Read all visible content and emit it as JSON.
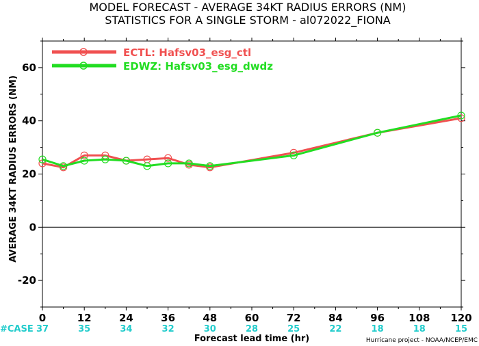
{
  "chart_data": {
    "type": "line",
    "title": "MODEL FORECAST - AVERAGE 34KT RADIUS ERRORS (NM)",
    "subtitle": "STATISTICS FOR A SINGLE STORM - al072022_FIONA",
    "xlabel": "Forecast lead time (hr)",
    "ylabel": "AVERAGE 34KT RADIUS ERRORS (NM)",
    "xlim": [
      0,
      120
    ],
    "ylim": [
      -30,
      70
    ],
    "x_ticks": [
      0,
      12,
      24,
      36,
      48,
      60,
      72,
      84,
      96,
      108,
      120
    ],
    "y_ticks": [
      -20,
      0,
      20,
      40,
      60
    ],
    "x_tick_labels": [
      "0",
      "12",
      "24",
      "36",
      "48",
      "60",
      "72",
      "84",
      "96",
      "108",
      "120"
    ],
    "y_tick_labels": [
      "-20",
      "0",
      "20",
      "40",
      "60"
    ],
    "grid": false,
    "legend_position": "top-left",
    "series": [
      {
        "name": "ECTL: Hafsv03_esg_ctl",
        "color": "#f05050",
        "x": [
          0,
          6,
          12,
          18,
          24,
          30,
          36,
          42,
          48,
          72,
          96,
          120
        ],
        "y": [
          24,
          22.5,
          27,
          27,
          25,
          25.5,
          26,
          23.5,
          22.5,
          28,
          35.5,
          41
        ]
      },
      {
        "name": "EDWZ: Hafsv03_esg_dwdz",
        "color": "#22dd22",
        "x": [
          0,
          6,
          12,
          18,
          24,
          30,
          36,
          42,
          48,
          72,
          96,
          120
        ],
        "y": [
          25.5,
          23,
          25,
          25.5,
          25,
          23,
          24,
          24,
          23,
          27,
          35.5,
          42
        ]
      }
    ],
    "zero_line": true,
    "cases": {
      "label": "#CASE",
      "color": "#22cccc",
      "x": [
        0,
        12,
        24,
        36,
        48,
        60,
        72,
        84,
        96,
        108,
        120
      ],
      "values": [
        "37",
        "35",
        "34",
        "32",
        "30",
        "28",
        "25",
        "22",
        "18",
        "18",
        "15"
      ]
    },
    "credit": "Hurricane project - NOAA/NCEP/EMC"
  }
}
